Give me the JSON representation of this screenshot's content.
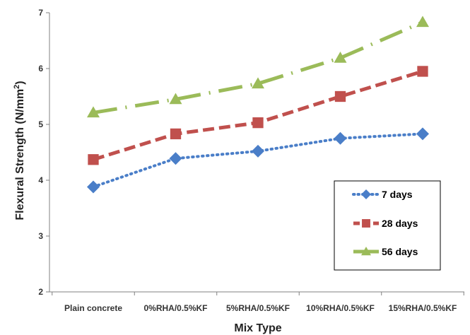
{
  "chart_data": {
    "type": "line",
    "categories": [
      "Plain concrete",
      "0%RHA/0.5%KF",
      "5%RHA/0.5%KF",
      "10%RHA/0.5%KF",
      "15%RHA/0.5%KF"
    ],
    "series": [
      {
        "name": "7 days",
        "values": [
          3.88,
          4.39,
          4.52,
          4.75,
          4.83
        ],
        "color": "#4a7ec8",
        "marker": "diamond",
        "dash": "dotted"
      },
      {
        "name": "28 days",
        "values": [
          4.37,
          4.83,
          5.03,
          5.5,
          5.95
        ],
        "color": "#c0504d",
        "marker": "square",
        "dash": "dashed"
      },
      {
        "name": "56 days",
        "values": [
          5.21,
          5.45,
          5.73,
          6.19,
          6.83
        ],
        "color": "#9bbb59",
        "marker": "triangle",
        "dash": "dash-dot"
      }
    ],
    "xlabel": "Mix Type",
    "ylabel_main": "Flexural Strength (N/mm",
    "ylabel_sup": "2",
    "ylabel_end": ")",
    "ylim": [
      2,
      7
    ],
    "yticks": [
      "2",
      "3",
      "4",
      "5",
      "6",
      "7"
    ],
    "grid": false,
    "legend_position": "bottom-right"
  }
}
